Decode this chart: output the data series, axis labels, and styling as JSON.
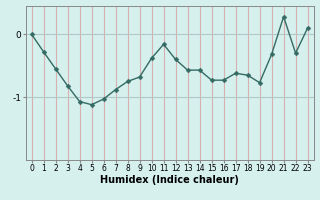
{
  "x": [
    0,
    1,
    2,
    3,
    4,
    5,
    6,
    7,
    8,
    9,
    10,
    11,
    12,
    13,
    14,
    15,
    16,
    17,
    18,
    19,
    20,
    21,
    22,
    23
  ],
  "y": [
    0.0,
    -0.28,
    -0.55,
    -0.82,
    -1.07,
    -1.12,
    -1.03,
    -0.88,
    -0.75,
    -0.68,
    -0.38,
    -0.16,
    -0.4,
    -0.57,
    -0.57,
    -0.73,
    -0.73,
    -0.62,
    -0.65,
    -0.77,
    -0.32,
    0.28,
    -0.3,
    0.1
  ],
  "line_color": "#336b63",
  "marker": "D",
  "marker_size": 2.5,
  "linewidth": 1.0,
  "xlabel": "Humidex (Indice chaleur)",
  "xlim": [
    -0.5,
    23.5
  ],
  "ylim": [
    -2.0,
    0.45
  ],
  "yticks": [
    0,
    -1
  ],
  "bg_color": "#d6f0ee",
  "vgrid_color": "#d9b0b0",
  "hgrid_color": "#b0c8c8",
  "tick_fontsize": 5.5,
  "xlabel_fontsize": 7.0
}
